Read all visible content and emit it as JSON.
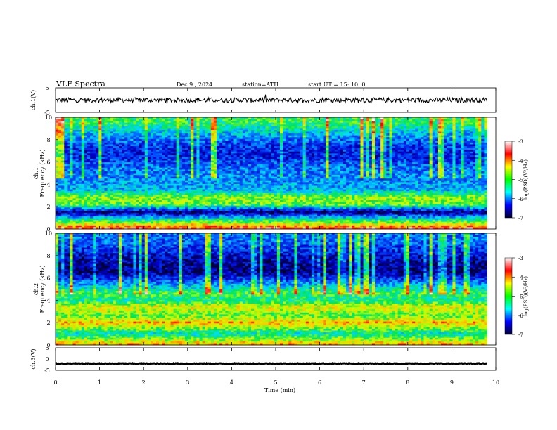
{
  "header": {
    "title": "VLF  Spectra",
    "date": "Dec.9   , 2024",
    "station": "station=ATH",
    "start": "start  UT  =    15: 10: 0"
  },
  "colorbar": {
    "label": "log(PSD)(V²/Hz)",
    "ticks": [
      "-3",
      "-4",
      "-5",
      "-6",
      "-7"
    ],
    "stops": [
      "#ffffff",
      "#ff0000",
      "#ffff00",
      "#00ff00",
      "#00ffff",
      "#0000ff",
      "#000030"
    ]
  },
  "chart_data": [
    {
      "type": "line",
      "panel": "ch1-waveform",
      "ylabel": "ch.1(V)",
      "ylim": [
        -5,
        5
      ],
      "ytick_labels": [
        "5",
        "-5"
      ],
      "baseline": 0,
      "noise_amplitude": 1
    },
    {
      "type": "heatmap",
      "panel": "ch1-spectrogram",
      "ylabel": "ch.1\nFrequency  (kHz)",
      "ylim": [
        0,
        10
      ],
      "ytick_labels": [
        "0",
        "2",
        "4",
        "6",
        "8",
        "10"
      ],
      "bands": [
        {
          "f": 0.1,
          "level": -3.5
        },
        {
          "f": 0.5,
          "level": -4.5
        },
        {
          "f": 1.0,
          "level": -5.5
        },
        {
          "f": 1.5,
          "level": -6.8
        },
        {
          "f": 2.2,
          "level": -4.8
        },
        {
          "f": 2.8,
          "level": -4.6
        },
        {
          "f": 3.5,
          "level": -5.6
        },
        {
          "f": 4.5,
          "level": -5.8
        },
        {
          "f": 5.5,
          "level": -5.9
        },
        {
          "f": 6.5,
          "level": -6.3
        },
        {
          "f": 7.5,
          "level": -6.2
        },
        {
          "f": 8.5,
          "level": -5.6
        },
        {
          "f": 9.5,
          "level": -5.0
        }
      ]
    },
    {
      "type": "heatmap",
      "panel": "ch2-spectrogram",
      "ylabel": "ch.2\nFrequency  (kHz)",
      "ylim": [
        0,
        10
      ],
      "ytick_labels": [
        "0",
        "2",
        "4",
        "6",
        "8",
        "10"
      ],
      "bands": [
        {
          "f": 0.2,
          "level": -4.2
        },
        {
          "f": 1.0,
          "level": -5.3
        },
        {
          "f": 2.0,
          "level": -4.0
        },
        {
          "f": 2.6,
          "level": -4.8
        },
        {
          "f": 3.4,
          "level": -4.3
        },
        {
          "f": 4.0,
          "level": -5.2
        },
        {
          "f": 4.6,
          "level": -4.9
        },
        {
          "f": 5.5,
          "level": -5.8
        },
        {
          "f": 6.5,
          "level": -6.7
        },
        {
          "f": 7.5,
          "level": -6.6
        },
        {
          "f": 8.5,
          "level": -6.2
        },
        {
          "f": 9.5,
          "level": -5.9
        }
      ]
    },
    {
      "type": "line",
      "panel": "ch3-waveform",
      "ylabel": "ch.3(V)",
      "ylim": [
        -5,
        5
      ],
      "ytick_labels": [
        "5",
        "0",
        "-5"
      ],
      "baseline": -2,
      "noise_amplitude": 0.15
    }
  ],
  "xaxis": {
    "label": "Time  (min)",
    "ticks": [
      "0",
      "1",
      "2",
      "3",
      "4",
      "5",
      "6",
      "7",
      "8",
      "9",
      "10"
    ],
    "xlim": [
      0,
      10
    ],
    "data_end": 9.8
  }
}
